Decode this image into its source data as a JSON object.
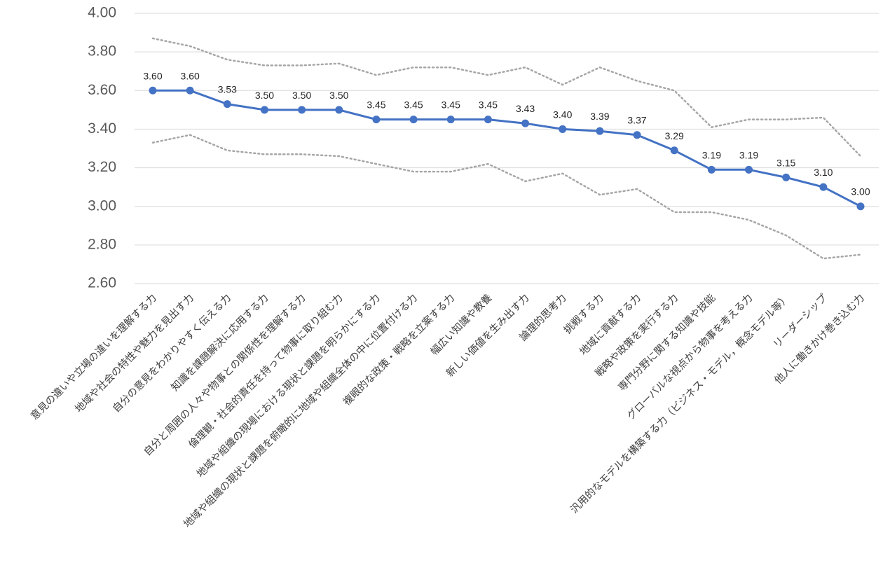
{
  "chart_data": {
    "type": "line",
    "title": "",
    "xlabel": "",
    "ylabel": "",
    "ylim": [
      2.6,
      4.0
    ],
    "yticks": [
      "4.00",
      "3.80",
      "3.60",
      "3.40",
      "3.20",
      "3.00",
      "2.80",
      "2.60"
    ],
    "grid": true,
    "legend": "none",
    "categories": [
      "意見の違いや立場の違いを理解する力",
      "地域や社会の特性や魅力を見出す力",
      "自分の意見をわかりやすく伝える力",
      "知識を課題解決に応用する力",
      "自分と周囲の人々や物事との関係性を理解する力",
      "倫理観・社会的責任を持って物事に取り組む力",
      "地域や組織の現場における現状と課題を明らかにする力",
      "地域や組織の現状と課題を俯瞰的に地域や組織全体の中に位置付ける力",
      "複眼的な政策・戦略を立案する力",
      "幅広い知識や教養",
      "新しい価値を生み出す力",
      "論理的思考力",
      "挑戦する力",
      "地域に貢献する力",
      "戦略や政策を実行する力",
      "専門分野に関する知識や技能",
      "グローバルな視点から物事を考える力",
      "汎用的なモデルを構築する力（ビジネス・モデル，概念モデル等）",
      "リーダーシップ",
      "他人に働きかけ巻き込む力"
    ],
    "series": [
      {
        "role": "main",
        "color": "#4472c4",
        "values": [
          3.6,
          3.6,
          3.53,
          3.5,
          3.5,
          3.5,
          3.45,
          3.45,
          3.45,
          3.45,
          3.43,
          3.4,
          3.39,
          3.37,
          3.29,
          3.19,
          3.19,
          3.15,
          3.1,
          3.0
        ],
        "data_labels": [
          "3.60",
          "3.60",
          "3.53",
          "3.50",
          "3.50",
          "3.50",
          "3.45",
          "3.45",
          "3.45",
          "3.45",
          "3.43",
          "3.40",
          "3.39",
          "3.37",
          "3.29",
          "3.19",
          "3.19",
          "3.15",
          "3.10",
          "3.00"
        ]
      },
      {
        "role": "upper-bound",
        "color": "#a6a6a6",
        "style": "dotted",
        "values": [
          3.87,
          3.83,
          3.76,
          3.73,
          3.73,
          3.74,
          3.68,
          3.72,
          3.72,
          3.68,
          3.72,
          3.63,
          3.72,
          3.65,
          3.6,
          3.41,
          3.45,
          3.45,
          3.46,
          3.26
        ]
      },
      {
        "role": "lower-bound",
        "color": "#a6a6a6",
        "style": "dotted",
        "values": [
          3.33,
          3.37,
          3.29,
          3.27,
          3.27,
          3.26,
          3.22,
          3.18,
          3.18,
          3.22,
          3.13,
          3.17,
          3.06,
          3.09,
          2.97,
          2.97,
          2.93,
          2.85,
          2.73,
          2.75
        ]
      }
    ]
  }
}
